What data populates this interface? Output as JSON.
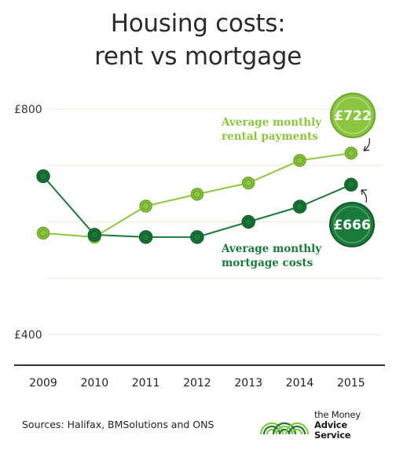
{
  "title": {
    "line1": "Housing costs:",
    "line2": "rent vs mortgage"
  },
  "source": "Sources: Halifax, BMSolutions and ONS",
  "brand": {
    "line1": "the Money",
    "line2": "Advice Service"
  },
  "colors": {
    "rent": "#8cc63f",
    "mortgage": "#1a7a3a",
    "grid": "#dfefd0",
    "axis": "#333333"
  },
  "chart_data": {
    "type": "line",
    "title": "Housing costs: rent vs mortgage",
    "x": [
      "2009",
      "2010",
      "2011",
      "2012",
      "2013",
      "2014",
      "2015"
    ],
    "ylim": [
      330,
      800
    ],
    "y_ticks": [
      {
        "value": 800,
        "label": "£800"
      },
      {
        "value": 700,
        "label": ""
      },
      {
        "value": 600,
        "label": ""
      },
      {
        "value": 500,
        "label": ""
      },
      {
        "value": 400,
        "label": "£400"
      }
    ],
    "grid": true,
    "series": [
      {
        "name": "Average monthly rental payments",
        "label_lines": [
          "Average monthly",
          "rental payments"
        ],
        "color": "#8cc63f",
        "values": [
          580,
          573,
          628,
          649,
          669,
          709,
          722
        ],
        "end_badge": "£722"
      },
      {
        "name": "Average monthly mortgage costs",
        "label_lines": [
          "Average monthly",
          "mortgage costs"
        ],
        "color": "#1a7a3a",
        "values": [
          681,
          577,
          573,
          573,
          600,
          627,
          666
        ],
        "end_badge": "£666"
      }
    ]
  }
}
